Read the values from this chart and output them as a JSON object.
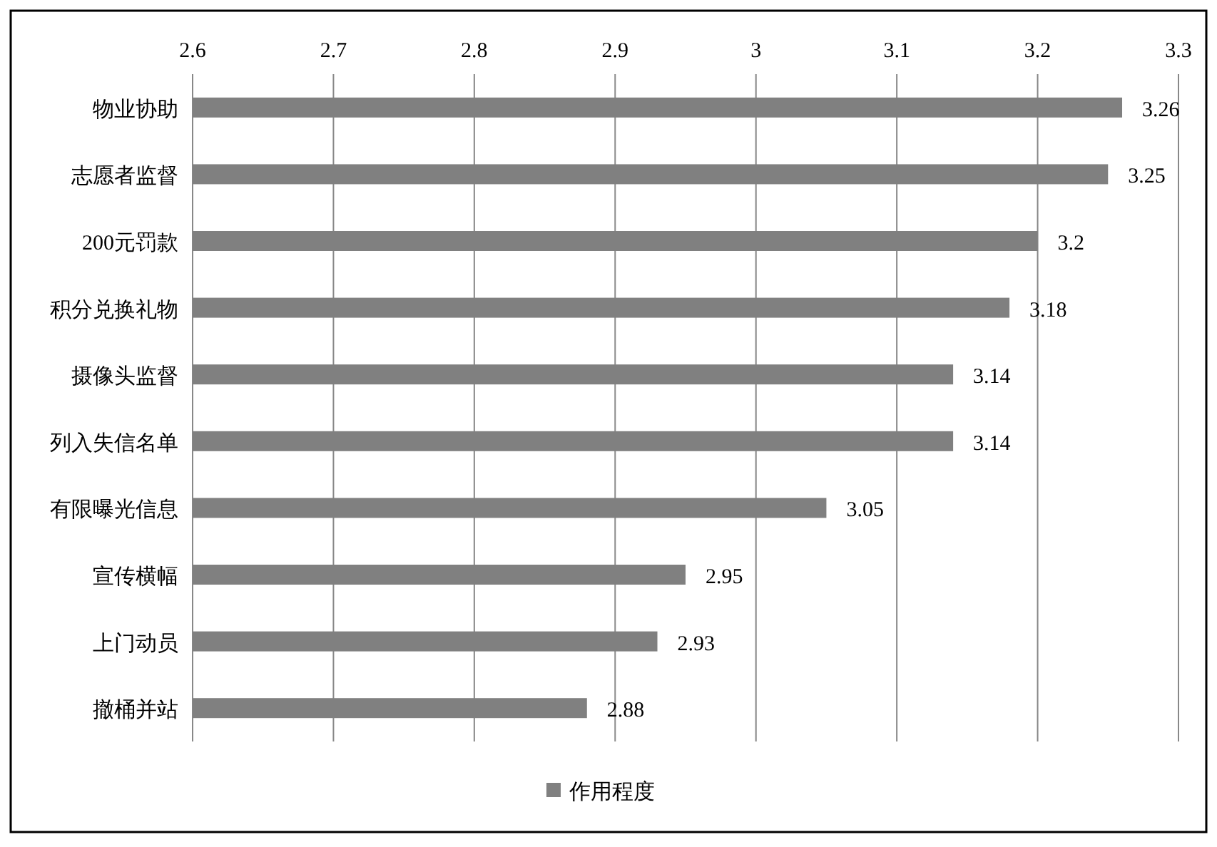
{
  "chart_data": {
    "type": "bar",
    "orientation": "horizontal",
    "categories": [
      "物业协助",
      "志愿者监督",
      "200元罚款",
      "积分兑换礼物",
      "摄像头监督",
      "列入失信名单",
      "有限曝光信息",
      "宣传横幅",
      "上门动员",
      "撤桶并站"
    ],
    "series": [
      {
        "name": "作用程度",
        "color": "#808080",
        "values": [
          3.26,
          3.25,
          3.2,
          3.18,
          3.14,
          3.14,
          3.05,
          2.95,
          2.93,
          2.88
        ]
      }
    ],
    "xlim": [
      2.6,
      3.3
    ],
    "xticks": [
      2.6,
      2.7,
      2.8,
      2.9,
      3,
      3.1,
      3.2,
      3.3
    ],
    "grid": "x",
    "legend": "bottom",
    "data_labels": true
  }
}
